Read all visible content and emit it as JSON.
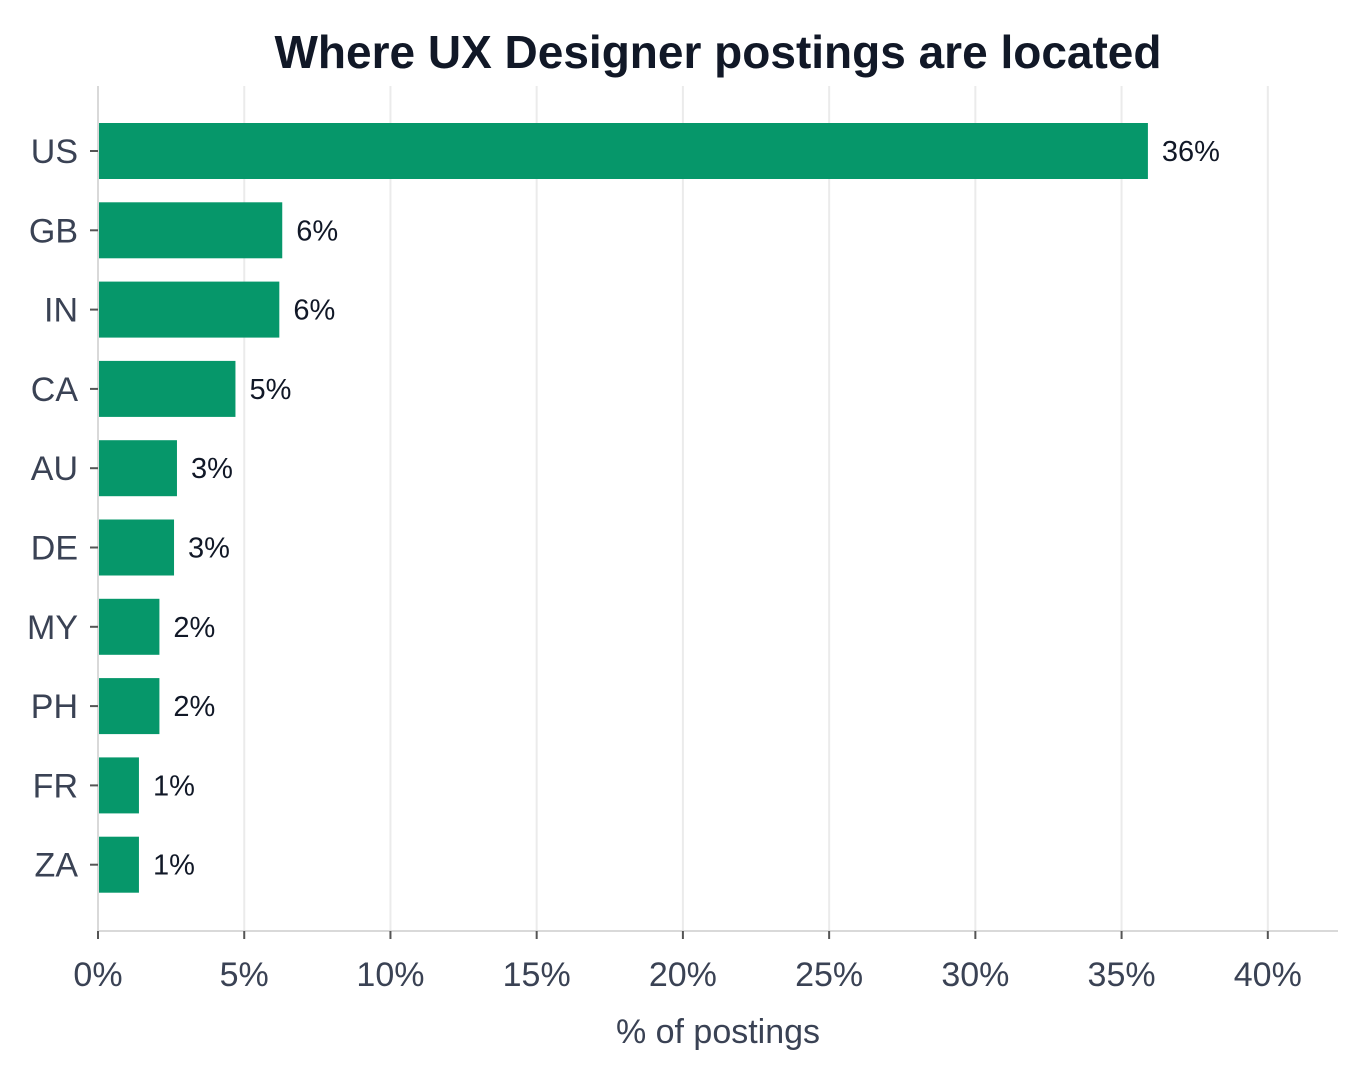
{
  "chart_data": {
    "type": "bar",
    "orientation": "horizontal",
    "title": "Where UX Designer postings are located",
    "xlabel": "% of postings",
    "ylabel": "",
    "categories": [
      "US",
      "GB",
      "IN",
      "CA",
      "AU",
      "DE",
      "MY",
      "PH",
      "FR",
      "ZA"
    ],
    "values": [
      35.9,
      6.3,
      6.2,
      4.7,
      2.7,
      2.6,
      2.1,
      2.1,
      1.4,
      1.4
    ],
    "value_labels": [
      "36%",
      "6%",
      "6%",
      "5%",
      "3%",
      "3%",
      "2%",
      "2%",
      "1%",
      "1%"
    ],
    "xlim": [
      0,
      42.4
    ],
    "x_ticks": [
      0,
      5,
      10,
      15,
      20,
      25,
      30,
      35,
      40
    ],
    "x_tick_labels": [
      "0%",
      "5%",
      "10%",
      "15%",
      "20%",
      "25%",
      "30%",
      "35%",
      "40%"
    ],
    "grid": "vertical",
    "legend": "none",
    "colors": {
      "bar": "#06976a",
      "grid": "#ebebeb",
      "axis": "#d9d9d9",
      "tick_text": "#3a4254",
      "title_text": "#111827",
      "value_text": "#111827"
    }
  }
}
